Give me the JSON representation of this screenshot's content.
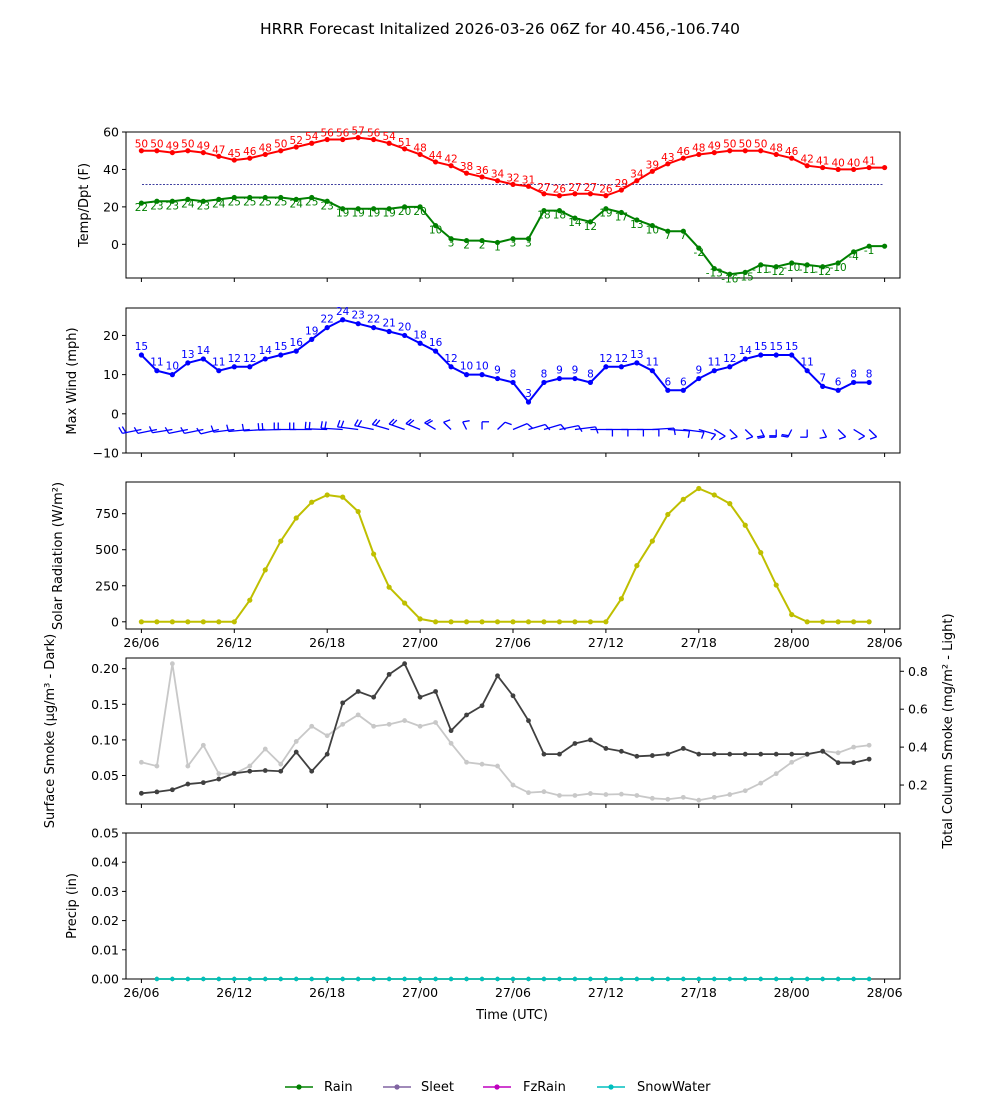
{
  "title": "HRRR Forecast Initalized 2026-03-26 06Z for 40.456,-106.740",
  "time_axis": {
    "labels": [
      "26/06",
      "26/12",
      "26/18",
      "27/00",
      "27/06",
      "27/12",
      "27/18",
      "28/00",
      "28/06"
    ],
    "xlabel": "Time (UTC)"
  },
  "colors": {
    "temp": "#ff0000",
    "dewpoint": "#008000",
    "wind": "#0000ff",
    "solar": "#bfbf00",
    "smoke_dark": "#404040",
    "smoke_light": "#c8c8c8",
    "rain": "#008000",
    "sleet": "#8064a2",
    "fzrain": "#bf00bf",
    "snow": "#00bfbf"
  },
  "chart_data": [
    {
      "type": "line",
      "panel": "temperature",
      "ylabel": "Temp/Dpt (F)",
      "ylim": [
        -18,
        60
      ],
      "yticks": [
        "60",
        "40",
        "20",
        "0"
      ],
      "reference_line": 32,
      "x_hours": [
        0,
        1,
        2,
        3,
        4,
        5,
        6,
        7,
        8,
        9,
        10,
        11,
        12,
        13,
        14,
        15,
        16,
        17,
        18,
        19,
        20,
        21,
        22,
        23,
        24,
        25,
        26,
        27,
        28,
        29,
        30,
        31,
        32,
        33,
        34,
        35,
        36,
        37,
        38,
        39,
        40,
        41,
        42,
        43,
        44,
        45,
        46,
        47,
        48
      ],
      "series": [
        {
          "name": "Temperature",
          "values": [
            50,
            50,
            49,
            50,
            49,
            47,
            45,
            46,
            48,
            50,
            52,
            54,
            56,
            56,
            57,
            56,
            54,
            51,
            48,
            44,
            42,
            38,
            36,
            34,
            32,
            31,
            27,
            26,
            27,
            27,
            26,
            29,
            34,
            39,
            43,
            46,
            48,
            49,
            50,
            50,
            50,
            48,
            46,
            42,
            41,
            40,
            40,
            41,
            41
          ]
        },
        {
          "name": "Dewpoint",
          "values": [
            22,
            23,
            23,
            24,
            23,
            24,
            25,
            25,
            25,
            25,
            24,
            25,
            23,
            19,
            19,
            19,
            19,
            20,
            20,
            10,
            3,
            2,
            2,
            1,
            3,
            3,
            18,
            18,
            14,
            12,
            19,
            17,
            13,
            10,
            7,
            7,
            -2,
            -13,
            -16,
            -15,
            -11,
            -12,
            -10,
            -11,
            -12,
            -10,
            -4,
            -1,
            -1
          ]
        }
      ],
      "temp_labels": [
        "50",
        "50",
        "49",
        "50",
        "49",
        "47",
        "45",
        "46",
        "48",
        "50",
        "52",
        "54",
        "56",
        "56",
        "57",
        "56",
        "54",
        "51",
        "48",
        "44",
        "42",
        "38",
        "36",
        "34",
        "32",
        "31",
        "27",
        "26",
        "27",
        "27",
        "26",
        "29",
        "34",
        "39",
        "43",
        "46",
        "48",
        "49",
        "50",
        "50",
        "50",
        "48",
        "46",
        "42",
        "41",
        "40",
        "40",
        "41"
      ],
      "dewpoint_labels": [
        "22",
        "23",
        "23",
        "24",
        "23",
        "24",
        "25",
        "25",
        "25",
        "25",
        "24",
        "25",
        "23",
        "19",
        "19",
        "19",
        "19",
        "20",
        "20",
        "10",
        "3",
        "2",
        "2",
        "1",
        "3",
        "3",
        "18",
        "18",
        "14",
        "12",
        "19",
        "17",
        "13",
        "10",
        "7",
        "7",
        "-2",
        "-13",
        "-16",
        "-15",
        "-11",
        "-12",
        "-10",
        "-11",
        "-12",
        "-10",
        "-4",
        "-1"
      ]
    },
    {
      "type": "line",
      "panel": "wind",
      "ylabel": "Max Wind (mph)",
      "ylim": [
        -10,
        27
      ],
      "yticks": [
        "20",
        "10",
        "0",
        "−10"
      ],
      "series": [
        {
          "name": "Max Wind",
          "values": [
            15,
            11,
            10,
            13,
            14,
            11,
            12,
            12,
            14,
            15,
            16,
            19,
            22,
            24,
            23,
            22,
            21,
            20,
            18,
            16,
            12,
            10,
            10,
            9,
            8,
            3,
            8,
            9,
            9,
            8,
            12,
            12,
            13,
            11,
            6,
            6,
            9,
            11,
            12,
            14,
            15,
            15,
            15,
            11,
            7,
            6,
            8,
            8
          ]
        }
      ],
      "labels": [
        "15",
        "11",
        "10",
        "13",
        "14",
        "11",
        "12",
        "12",
        "14",
        "15",
        "16",
        "19",
        "22",
        "24",
        "23",
        "22",
        "21",
        "20",
        "18",
        "16",
        "12",
        "10",
        "10",
        "9",
        "8",
        "3",
        "8",
        "9",
        "9",
        "8",
        "12",
        "12",
        "13",
        "11",
        "6",
        "6",
        "9",
        "11",
        "12",
        "14",
        "15",
        "15",
        "15",
        "11",
        "7",
        "6",
        "8",
        "8"
      ],
      "barbs_dir_deg": [
        240,
        240,
        245,
        240,
        240,
        235,
        250,
        255,
        260,
        265,
        270,
        270,
        275,
        280,
        290,
        300,
        310,
        315,
        320,
        330,
        340,
        350,
        0,
        20,
        40,
        50,
        50,
        60,
        70,
        90,
        90,
        90,
        90,
        80,
        100,
        110,
        130,
        150,
        160,
        160,
        170,
        180,
        190,
        180,
        170,
        160,
        150,
        160
      ]
    },
    {
      "type": "line",
      "panel": "solar",
      "ylabel": "Solar Radiation (W/m²)",
      "ylim": [
        -50,
        970
      ],
      "yticks": [
        "750",
        "500",
        "250",
        "0"
      ],
      "series": [
        {
          "name": "Solar Radiation",
          "values": [
            0,
            0,
            0,
            0,
            0,
            0,
            0,
            150,
            360,
            560,
            720,
            830,
            880,
            865,
            765,
            470,
            240,
            130,
            20,
            0,
            0,
            0,
            0,
            0,
            0,
            0,
            0,
            0,
            0,
            0,
            0,
            160,
            390,
            560,
            745,
            850,
            925,
            880,
            820,
            670,
            480,
            255,
            50,
            0,
            0,
            0,
            0,
            0
          ]
        }
      ]
    },
    {
      "type": "line",
      "panel": "smoke",
      "ylabel_left": "Surface Smoke (μg/m³ - Dark)",
      "ylabel_right": "Total Column Smoke (mg/m² - Light)",
      "ylim_left": [
        0.01,
        0.215
      ],
      "ylim_right": [
        0.1,
        0.87
      ],
      "yticks_left": [
        "0.20",
        "0.15",
        "0.10",
        "0.05"
      ],
      "yticks_right": [
        "0.8",
        "0.6",
        "0.4",
        "0.2"
      ],
      "series": [
        {
          "name": "Surface Smoke",
          "axis": "left",
          "values": [
            0.025,
            0.027,
            0.03,
            0.038,
            0.04,
            0.045,
            0.053,
            0.056,
            0.057,
            0.056,
            0.083,
            0.056,
            0.08,
            0.152,
            0.168,
            0.16,
            0.192,
            0.207,
            0.16,
            0.168,
            0.113,
            0.135,
            0.148,
            0.19,
            0.162,
            0.127,
            0.08,
            0.08,
            0.095,
            0.1,
            0.088,
            0.084,
            0.077,
            0.078,
            0.08,
            0.088,
            0.08,
            0.08,
            0.08,
            0.08,
            0.08,
            0.08,
            0.08,
            0.08,
            0.084,
            0.068,
            0.068,
            0.073
          ]
        },
        {
          "name": "Total Column Smoke",
          "axis": "right",
          "values": [
            0.32,
            0.3,
            0.84,
            0.3,
            0.41,
            0.26,
            0.26,
            0.3,
            0.39,
            0.31,
            0.43,
            0.51,
            0.46,
            0.52,
            0.57,
            0.51,
            0.52,
            0.54,
            0.51,
            0.53,
            0.42,
            0.32,
            0.31,
            0.3,
            0.2,
            0.16,
            0.165,
            0.145,
            0.145,
            0.155,
            0.15,
            0.152,
            0.145,
            0.13,
            0.125,
            0.135,
            0.12,
            0.135,
            0.15,
            0.17,
            0.21,
            0.26,
            0.32,
            0.36,
            0.38,
            0.37,
            0.4,
            0.41
          ]
        }
      ]
    },
    {
      "type": "line",
      "panel": "precip",
      "ylabel": "Precip (in)",
      "ylim": [
        0,
        0.05
      ],
      "yticks": [
        "0.05",
        "0.04",
        "0.03",
        "0.02",
        "0.01",
        "0.00"
      ],
      "series": [
        {
          "name": "Rain",
          "values": [
            0,
            0,
            0,
            0,
            0,
            0,
            0,
            0,
            0,
            0,
            0,
            0,
            0,
            0,
            0,
            0,
            0,
            0,
            0,
            0,
            0,
            0,
            0,
            0,
            0,
            0,
            0,
            0,
            0,
            0,
            0,
            0,
            0,
            0,
            0,
            0,
            0,
            0,
            0,
            0,
            0,
            0,
            0,
            0,
            0,
            0,
            0
          ]
        },
        {
          "name": "SnowWater",
          "values": [
            0,
            0,
            0,
            0,
            0,
            0,
            0,
            0,
            0,
            0,
            0,
            0,
            0,
            0,
            0,
            0,
            0,
            0,
            0,
            0,
            0,
            0,
            0,
            0,
            0,
            0,
            0,
            0,
            0,
            0,
            0,
            0,
            0,
            0,
            0,
            0,
            0,
            0,
            0,
            0,
            0,
            0,
            0,
            0,
            0,
            0,
            0
          ]
        }
      ]
    }
  ],
  "legend": {
    "placement": "bottom-center",
    "items": [
      {
        "label": "Rain",
        "color": "#008000"
      },
      {
        "label": "Sleet",
        "color": "#8064a2"
      },
      {
        "label": "FzRain",
        "color": "#bf00bf"
      },
      {
        "label": "SnowWater",
        "color": "#00bfbf"
      }
    ]
  }
}
